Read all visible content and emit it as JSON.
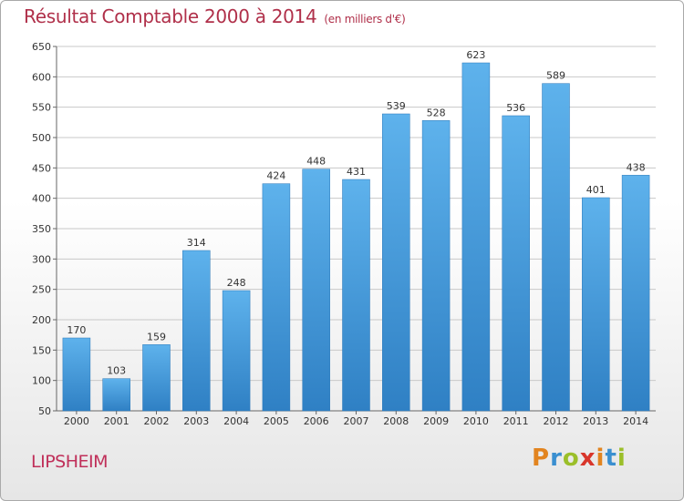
{
  "chart_data": {
    "type": "bar",
    "title": "Résultat Comptable 2000 à 2014",
    "subtitle": "(en milliers d'€)",
    "categories": [
      "2000",
      "2001",
      "2002",
      "2003",
      "2004",
      "2005",
      "2006",
      "2007",
      "2008",
      "2009",
      "2010",
      "2011",
      "2012",
      "2013",
      "2014"
    ],
    "values": [
      170,
      103,
      159,
      314,
      248,
      424,
      448,
      431,
      539,
      528,
      623,
      536,
      589,
      401,
      438
    ],
    "ylim": [
      50,
      650
    ],
    "yticks": [
      50,
      100,
      150,
      200,
      250,
      300,
      350,
      400,
      450,
      500,
      550,
      600,
      650
    ],
    "grid": true,
    "bar_color": "#4c9fdc"
  },
  "place_name": "LIPSHEIM",
  "logo": {
    "letters": [
      "P",
      "r",
      "o",
      "x",
      "i",
      "t",
      "i"
    ],
    "colors": [
      "#e2841f",
      "#3a8fd0",
      "#9bbf2a",
      "#d8362b",
      "#e2841f",
      "#3a8fd0",
      "#9bbf2a"
    ]
  }
}
